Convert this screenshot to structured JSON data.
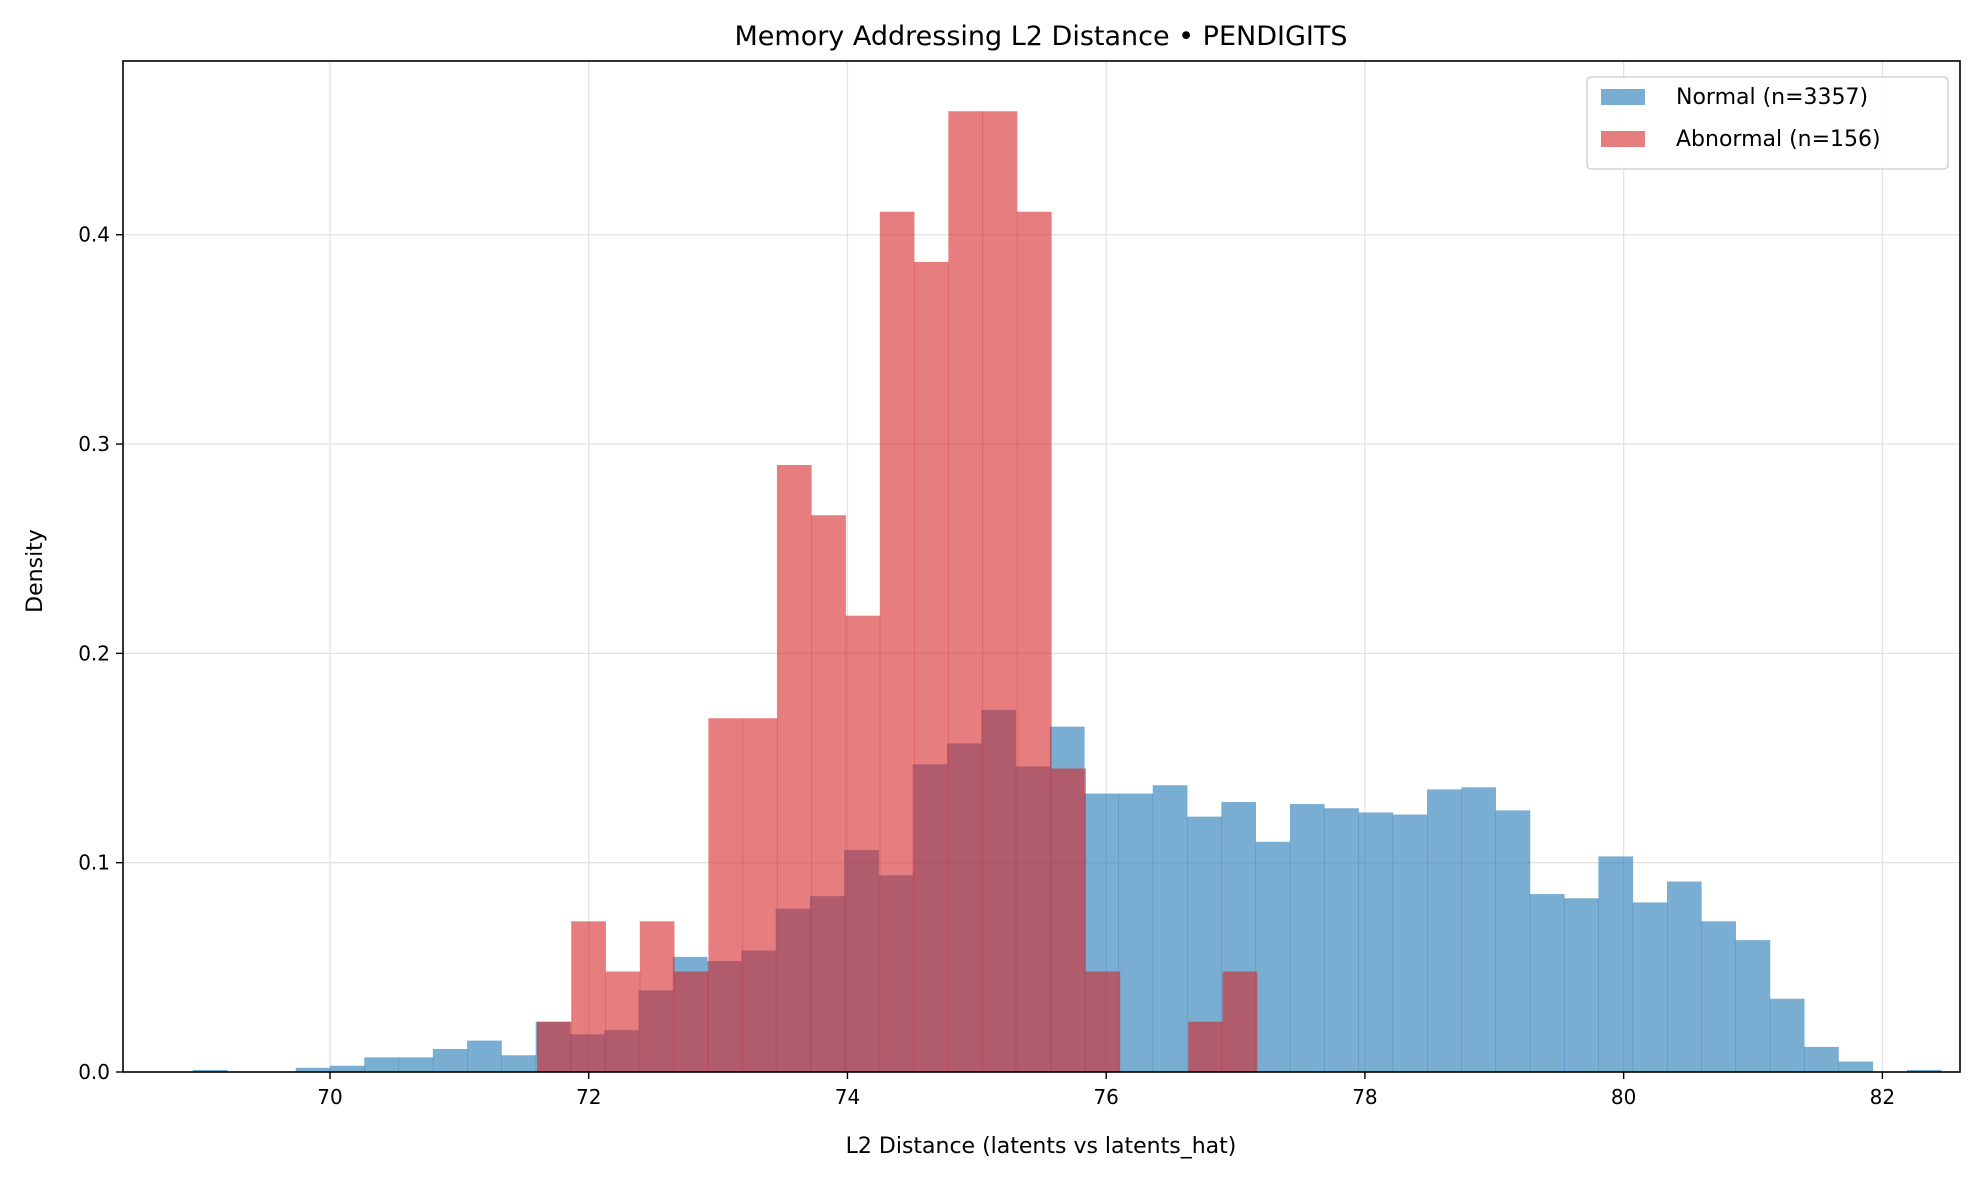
{
  "chart_data": {
    "type": "bar",
    "subtype": "overlapping-histogram",
    "title": "Memory Addressing L2 Distance • PENDIGITS",
    "xlabel": "L2 Distance (latents vs latents_hat)",
    "ylabel": "Density",
    "xlim": [
      68.4,
      82.6
    ],
    "ylim": [
      0,
      0.483
    ],
    "xticks": [
      70,
      72,
      74,
      76,
      78,
      80,
      82
    ],
    "yticks": [
      0.0,
      0.1,
      0.2,
      0.3,
      0.4
    ],
    "ytick_labels": [
      "0.0",
      "0.1",
      "0.2",
      "0.3",
      "0.4"
    ],
    "grid": true,
    "legend_position": "top-right",
    "series": [
      {
        "name": "Normal (n=3357)",
        "color": "#1f77b4",
        "bin_start": 68.94,
        "bin_width": 0.265,
        "values": [
          0.001,
          0.0,
          0.0,
          0.002,
          0.003,
          0.007,
          0.007,
          0.011,
          0.015,
          0.008,
          0.024,
          0.018,
          0.02,
          0.039,
          0.055,
          0.053,
          0.058,
          0.078,
          0.084,
          0.106,
          0.094,
          0.147,
          0.157,
          0.173,
          0.146,
          0.165,
          0.133,
          0.133,
          0.137,
          0.122,
          0.129,
          0.11,
          0.128,
          0.126,
          0.124,
          0.123,
          0.135,
          0.136,
          0.125,
          0.085,
          0.083,
          0.103,
          0.081,
          0.091,
          0.072,
          0.063,
          0.035,
          0.012,
          0.005,
          0.0,
          0.001
        ]
      },
      {
        "name": "Abnormal (n=156)",
        "color": "#d62728",
        "bin_start": 71.6,
        "bin_width": 0.265,
        "values": [
          0.024,
          0.072,
          0.048,
          0.072,
          0.048,
          0.169,
          0.169,
          0.29,
          0.266,
          0.218,
          0.411,
          0.387,
          0.459,
          0.459,
          0.411,
          0.145,
          0.048,
          0.0,
          0.0,
          0.024,
          0.048
        ]
      }
    ]
  }
}
